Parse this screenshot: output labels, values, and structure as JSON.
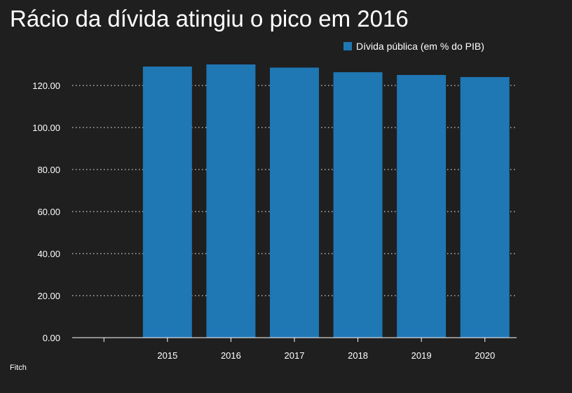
{
  "chart_data": {
    "type": "bar",
    "title": "Rácio da dívida atingiu o pico em 2016",
    "xlabel": "",
    "ylabel": "",
    "categories": [
      "",
      "2015",
      "2016",
      "2017",
      "2018",
      "2019",
      "2020"
    ],
    "series": [
      {
        "name": "Dívida pública (em % do PIB)",
        "values": [
          null,
          129.0,
          130.0,
          128.5,
          126.3,
          125.0,
          124.0
        ],
        "color": "#1f77b4"
      }
    ],
    "ylim": [
      0,
      130
    ],
    "yticks": [
      "0.00",
      "20.00",
      "40.00",
      "60.00",
      "80.00",
      "100.00",
      "120.00"
    ],
    "ytick_values": [
      0,
      20,
      40,
      60,
      80,
      100,
      120
    ],
    "grid": true,
    "legend": "top-right"
  },
  "source": "Fitch",
  "colors": {
    "background": "#1f1f1f",
    "bar": "#1f77b4",
    "text": "#ffffff",
    "grid": "#ffffff"
  }
}
